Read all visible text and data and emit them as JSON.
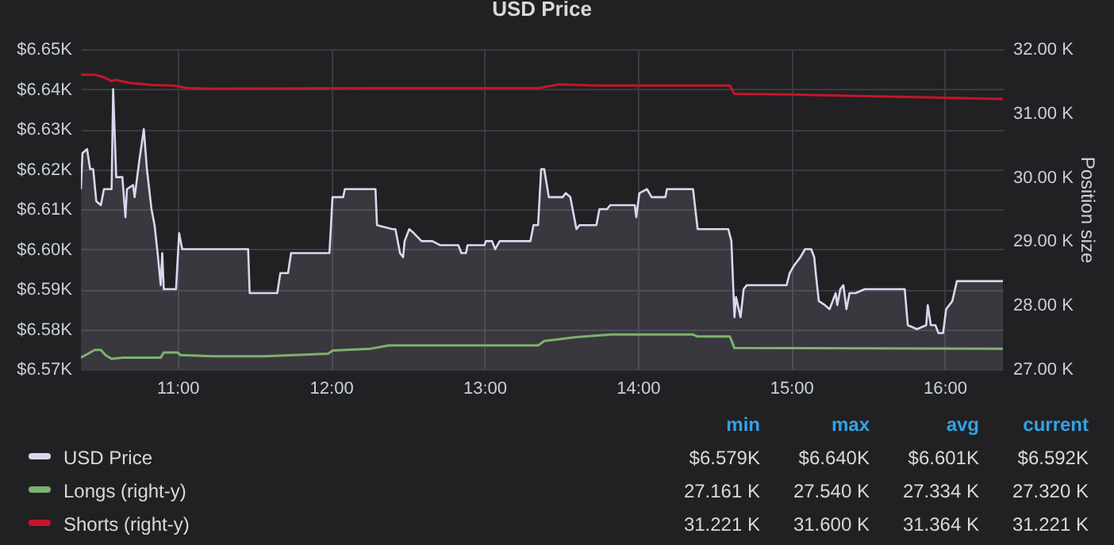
{
  "chart_data": {
    "type": "line",
    "title": "USD Price",
    "y2label": "Position size",
    "xlim": [
      10.37,
      16.38
    ],
    "xticks": [
      {
        "value": 11,
        "label": "11:00"
      },
      {
        "value": 12,
        "label": "12:00"
      },
      {
        "value": 13,
        "label": "13:00"
      },
      {
        "value": 14,
        "label": "14:00"
      },
      {
        "value": 15,
        "label": "15:00"
      },
      {
        "value": 16,
        "label": "16:00"
      }
    ],
    "ylim": [
      6.57,
      6.65
    ],
    "yticks": [
      {
        "value": 6.57,
        "label": "$6.57K"
      },
      {
        "value": 6.58,
        "label": "$6.58K"
      },
      {
        "value": 6.59,
        "label": "$6.59K"
      },
      {
        "value": 6.6,
        "label": "$6.60K"
      },
      {
        "value": 6.61,
        "label": "$6.61K"
      },
      {
        "value": 6.62,
        "label": "$6.62K"
      },
      {
        "value": 6.63,
        "label": "$6.63K"
      },
      {
        "value": 6.64,
        "label": "$6.64K"
      },
      {
        "value": 6.65,
        "label": "$6.65K"
      }
    ],
    "y2lim": [
      27,
      32
    ],
    "y2ticks": [
      {
        "value": 27,
        "label": "27.00 K"
      },
      {
        "value": 28,
        "label": "28.00 K"
      },
      {
        "value": 29,
        "label": "29.00 K"
      },
      {
        "value": 30,
        "label": "30.00 K"
      },
      {
        "value": 31,
        "label": "31.00 K"
      },
      {
        "value": 32,
        "label": "32.00 K"
      }
    ],
    "grid": true,
    "legend": "bottom",
    "series": [
      {
        "name": "USD Price",
        "type": "area",
        "color": "#d8d9f0",
        "x": [
          10.37,
          10.38,
          10.41,
          10.43,
          10.45,
          10.47,
          10.5,
          10.52,
          10.57,
          10.58,
          10.6,
          10.64,
          10.66,
          10.67,
          10.71,
          10.72,
          10.75,
          10.78,
          10.8,
          10.83,
          10.85,
          10.87,
          10.89,
          10.9,
          10.91,
          10.99,
          11.01,
          11.03,
          11.46,
          11.47,
          11.65,
          11.67,
          11.72,
          11.74,
          11.76,
          11.99,
          12.01,
          12.08,
          12.09,
          12.29,
          12.3,
          12.4,
          12.42,
          12.45,
          12.47,
          12.48,
          12.51,
          12.54,
          12.59,
          12.66,
          12.71,
          12.83,
          12.85,
          12.88,
          12.89,
          13.0,
          13.01,
          13.05,
          13.07,
          13.1,
          13.3,
          13.32,
          13.35,
          13.37,
          13.39,
          13.42,
          13.51,
          13.53,
          13.56,
          13.58,
          13.6,
          13.62,
          13.73,
          13.75,
          13.8,
          13.82,
          13.98,
          13.99,
          14.01,
          14.06,
          14.09,
          14.18,
          14.19,
          14.36,
          14.39,
          14.59,
          14.61,
          14.63,
          14.64,
          14.67,
          14.69,
          14.71,
          14.97,
          14.99,
          15.02,
          15.06,
          15.09,
          15.13,
          15.15,
          15.16,
          15.18,
          15.22,
          15.25,
          15.27,
          15.29,
          15.3,
          15.32,
          15.34,
          15.36,
          15.38,
          15.42,
          15.48,
          15.74,
          15.76,
          15.82,
          15.88,
          15.89,
          15.91,
          15.94,
          15.96,
          15.99,
          16.01,
          16.05,
          16.08,
          16.38
        ],
        "values": [
          6.615,
          6.624,
          6.625,
          6.62,
          6.62,
          6.612,
          6.611,
          6.615,
          6.615,
          6.64,
          6.618,
          6.618,
          6.608,
          6.615,
          6.616,
          6.613,
          6.622,
          6.63,
          6.62,
          6.61,
          6.606,
          6.599,
          6.591,
          6.599,
          6.59,
          6.59,
          6.604,
          6.6,
          6.6,
          6.589,
          6.589,
          6.594,
          6.594,
          6.599,
          6.599,
          6.599,
          6.613,
          6.613,
          6.615,
          6.615,
          6.606,
          6.605,
          6.605,
          6.599,
          6.598,
          6.602,
          6.605,
          6.604,
          6.602,
          6.602,
          6.601,
          6.601,
          6.599,
          6.599,
          6.601,
          6.601,
          6.602,
          6.602,
          6.6,
          6.602,
          6.602,
          6.606,
          6.606,
          6.62,
          6.62,
          6.613,
          6.613,
          6.614,
          6.613,
          6.609,
          6.605,
          6.606,
          6.606,
          6.61,
          6.61,
          6.611,
          6.611,
          6.608,
          6.614,
          6.615,
          6.613,
          6.613,
          6.615,
          6.615,
          6.605,
          6.605,
          6.602,
          6.583,
          6.588,
          6.583,
          6.59,
          6.591,
          6.591,
          6.594,
          6.596,
          6.598,
          6.6,
          6.6,
          6.598,
          6.594,
          6.587,
          6.586,
          6.585,
          6.587,
          6.589,
          6.586,
          6.59,
          6.591,
          6.585,
          6.589,
          6.589,
          6.59,
          6.59,
          6.581,
          6.58,
          6.581,
          6.586,
          6.581,
          6.581,
          6.579,
          6.579,
          6.585,
          6.587,
          6.592,
          6.592
        ]
      },
      {
        "name": "Longs (right-y)",
        "type": "line",
        "axis": "y2",
        "color": "#7eb26d",
        "x": [
          10.37,
          10.43,
          10.46,
          10.5,
          10.53,
          10.57,
          10.64,
          10.89,
          10.91,
          11.0,
          11.02,
          11.23,
          11.57,
          11.98,
          12.01,
          12.26,
          12.33,
          12.38,
          13.35,
          13.39,
          13.6,
          13.82,
          14.36,
          14.39,
          14.6,
          14.63,
          16.38
        ],
        "values": [
          27.18,
          27.26,
          27.3,
          27.3,
          27.22,
          27.16,
          27.18,
          27.18,
          27.26,
          27.26,
          27.22,
          27.2,
          27.2,
          27.24,
          27.29,
          27.32,
          27.35,
          27.37,
          27.37,
          27.44,
          27.5,
          27.54,
          27.54,
          27.51,
          27.51,
          27.33,
          27.32
        ]
      },
      {
        "name": "Shorts (right-y)",
        "type": "line",
        "axis": "y2",
        "color": "#c4162a",
        "x": [
          10.37,
          10.46,
          10.52,
          10.57,
          10.59,
          10.69,
          10.83,
          10.97,
          11.07,
          11.21,
          12.33,
          13.35,
          13.49,
          13.73,
          14.6,
          14.63,
          15.01,
          16.38
        ],
        "values": [
          31.6,
          31.6,
          31.56,
          31.5,
          31.52,
          31.47,
          31.44,
          31.43,
          31.39,
          31.38,
          31.39,
          31.39,
          31.45,
          31.43,
          31.43,
          31.3,
          31.29,
          31.22
        ]
      }
    ],
    "annotations": [
      "min",
      "max",
      "avg",
      "current",
      "$6.579K",
      "$6.640K",
      "$6.601K",
      "$6.592K",
      "27.161 K",
      "27.540 K",
      "27.334 K",
      "27.320 K",
      "31.221 K",
      "31.600 K",
      "31.364 K",
      "31.221 K"
    ]
  }
}
